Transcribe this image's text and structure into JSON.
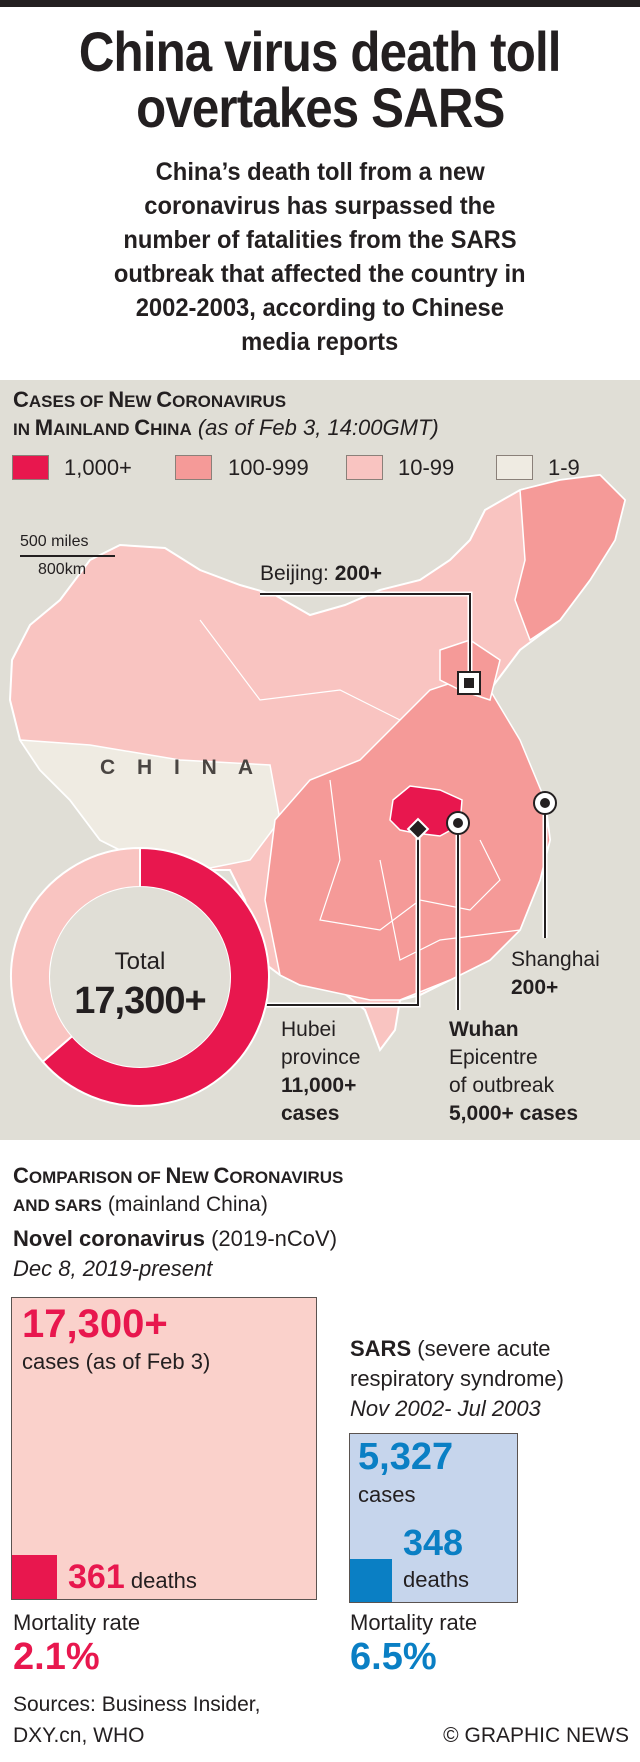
{
  "title": {
    "line1": "China virus death toll",
    "line2": "overtakes SARS"
  },
  "subtitle": [
    "China’s death toll from a new",
    "coronavirus has surpassed the",
    "number of fatalities from the SARS",
    "outbreak that affected the country in",
    "2002-2003, according to Chinese",
    "media reports"
  ],
  "map_section": {
    "heading_line1_cap1": "C",
    "heading_line1_rest": "ASES OF ",
    "heading_line1_cap2": "N",
    "heading_line1_rest2": "EW ",
    "heading_line1_cap3": "C",
    "heading_line1_rest3": "ORONAVIRUS",
    "heading_line2_a": "IN ",
    "heading_line2_cap1": "M",
    "heading_line2_rest1": "AINLAND ",
    "heading_line2_cap2": "C",
    "heading_line2_rest2": "HINA",
    "heading_note": "(as of Feb 3, 14:00GMT)",
    "legend": [
      {
        "label": "1,000+",
        "color": "#e8174e"
      },
      {
        "label": "100-999",
        "color": "#f59a98"
      },
      {
        "label": "10-99",
        "color": "#f9c4c1"
      },
      {
        "label": "1-9",
        "color": "#efebe2"
      }
    ],
    "scale": {
      "miles": "500 miles",
      "km": "800km"
    },
    "country_label": "C H I N A",
    "beijing": {
      "name": "Beijing:",
      "value": "200+"
    },
    "shanghai": {
      "name": "Shanghai",
      "value": "200+"
    },
    "hubei": {
      "line1": "Hubei",
      "line2": "province",
      "value": "11,000+",
      "unit": "cases"
    },
    "wuhan": {
      "name": "Wuhan",
      "line2": "Epicentre",
      "line3": "of outbreak",
      "value": "5,000+ cases"
    },
    "donut": {
      "label": "Total",
      "total": "17,300+",
      "hubei_share": 0.636,
      "hubei_color": "#e8174e",
      "rest_color": "#f9c4c1"
    }
  },
  "comparison": {
    "heading_cap1": "C",
    "heading_rest1": "OMPARISON OF ",
    "heading_cap2": "N",
    "heading_rest2": "EW ",
    "heading_cap3": "C",
    "heading_rest3": "ORONAVIRUS",
    "heading_line2": "AND SARS",
    "heading_note": "(mainland China)",
    "ncov": {
      "name": "Novel coronavirus",
      "code": "(2019-nCoV)",
      "period": "Dec 8, 2019-present",
      "cases": "17,300+",
      "cases_note": "cases (as of Feb 3)",
      "deaths": "361",
      "deaths_label": "deaths",
      "mortality_label": "Mortality rate",
      "mortality": "2.1%",
      "color": "#e8174e",
      "box_color": "#fad1cb"
    },
    "sars": {
      "name": "SARS",
      "desc1": "(severe acute",
      "desc2": "respiratory syndrome)",
      "period": "Nov 2002- Jul 2003",
      "cases": "5,327",
      "cases_label": "cases",
      "deaths": "348",
      "deaths_label": "deaths",
      "mortality_label": "Mortality rate",
      "mortality": "6.5%",
      "color": "#0a7fc4",
      "box_color": "#c6d5ec"
    }
  },
  "footer": {
    "sources1": "Sources: Business Insider,",
    "sources2": "DXY.cn, WHO",
    "credit": "© GRAPHIC NEWS"
  }
}
